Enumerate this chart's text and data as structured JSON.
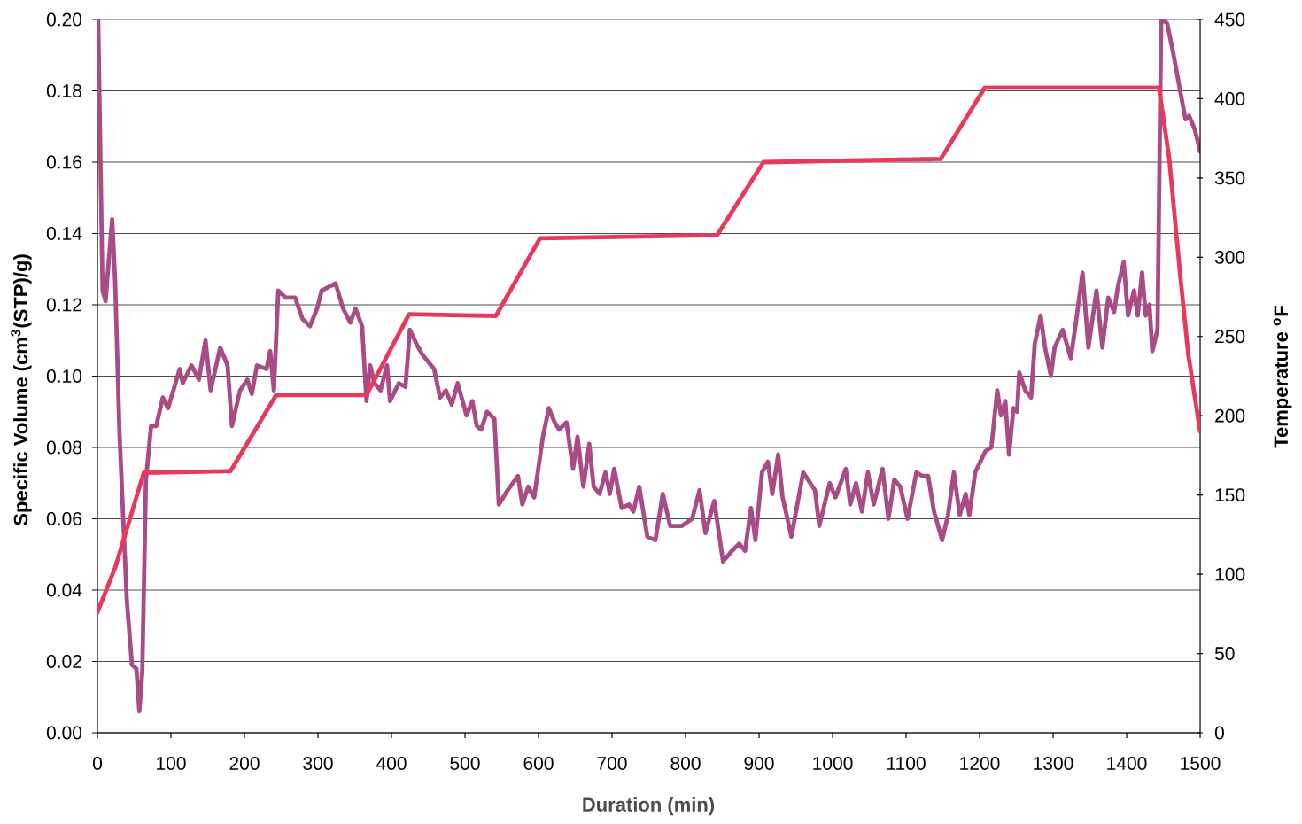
{
  "chart_data": {
    "type": "line",
    "xlabel": "Duration (min)",
    "ylabel": "Specific Volume (cm$^{3}$(STP)/g)",
    "y2label": "Temperature $^{o}$F",
    "xlim": [
      0,
      1500
    ],
    "xticks": [
      0,
      100,
      200,
      300,
      400,
      500,
      600,
      700,
      800,
      900,
      1000,
      1100,
      1200,
      1300,
      1400,
      1500
    ],
    "ylim": [
      0,
      0.2
    ],
    "yticks": [
      {
        "value": 0,
        "label": "0.00"
      },
      0.02,
      0.04,
      0.06,
      0.08,
      {
        "value": 0.1,
        "label": "0.10"
      },
      0.12,
      0.14,
      0.16,
      0.18,
      {
        "value": 0.2,
        "label": "0.20"
      }
    ],
    "y2lim": [
      0,
      450
    ],
    "y2ticks": [
      0,
      50,
      100,
      150,
      200,
      250,
      300,
      350,
      400,
      450
    ],
    "grid": "y",
    "series": [
      {
        "color": "#a94c85",
        "x": [
          1,
          7,
          11,
          20,
          24,
          30,
          40,
          47,
          53,
          57,
          61,
          66,
          73,
          80,
          89,
          96,
          112,
          116,
          128,
          138,
          147,
          154,
          167,
          177,
          183,
          194,
          204,
          210,
          217,
          230,
          235,
          240,
          246,
          256,
          269,
          279,
          289,
          299,
          305,
          324,
          334,
          344,
          351,
          360,
          366,
          371,
          377,
          385,
          394,
          398,
          410,
          419,
          425,
          434,
          442,
          458,
          466,
          474,
          482,
          490,
          502,
          510,
          516,
          522,
          530,
          540,
          546,
          558,
          572,
          578,
          586,
          594,
          606,
          614,
          622,
          628,
          638,
          647,
          653,
          661,
          669,
          675,
          683,
          691,
          697,
          703,
          713,
          723,
          729,
          737,
          748,
          759,
          769,
          779,
          795,
          809,
          819,
          827,
          839,
          851,
          863,
          873,
          881,
          889,
          895,
          904,
          912,
          918,
          926,
          932,
          944,
          960,
          976,
          982,
          996,
          1004,
          1018,
          1024,
          1032,
          1040,
          1048,
          1056,
          1068,
          1076,
          1084,
          1092,
          1102,
          1114,
          1122,
          1130,
          1138,
          1149,
          1157,
          1165,
          1173,
          1181,
          1186,
          1194,
          1208,
          1216,
          1224,
          1229,
          1235,
          1240,
          1246,
          1251,
          1254,
          1262,
          1270,
          1275,
          1283,
          1289,
          1297,
          1302,
          1313,
          1324,
          1331,
          1340,
          1348,
          1359,
          1367,
          1375,
          1383,
          1388,
          1396,
          1402,
          1410,
          1415,
          1421,
          1426,
          1431,
          1435,
          1442,
          1447,
          1455,
          1463,
          1471,
          1480,
          1485,
          1493,
          1500
        ],
        "values": [
          0.2,
          0.124,
          0.121,
          0.144,
          0.127,
          0.084,
          0.037,
          0.019,
          0.018,
          0.006,
          0.017,
          0.071,
          0.086,
          0.086,
          0.094,
          0.091,
          0.102,
          0.098,
          0.103,
          0.099,
          0.11,
          0.096,
          0.108,
          0.103,
          0.086,
          0.096,
          0.099,
          0.095,
          0.103,
          0.102,
          0.107,
          0.096,
          0.124,
          0.122,
          0.122,
          0.116,
          0.114,
          0.119,
          0.124,
          0.126,
          0.119,
          0.115,
          0.119,
          0.114,
          0.093,
          0.103,
          0.098,
          0.096,
          0.103,
          0.093,
          0.098,
          0.097,
          0.113,
          0.109,
          0.106,
          0.102,
          0.094,
          0.096,
          0.092,
          0.098,
          0.089,
          0.093,
          0.086,
          0.085,
          0.09,
          0.088,
          0.064,
          0.068,
          0.072,
          0.064,
          0.069,
          0.066,
          0.083,
          0.091,
          0.087,
          0.085,
          0.087,
          0.074,
          0.083,
          0.069,
          0.081,
          0.069,
          0.067,
          0.073,
          0.067,
          0.074,
          0.063,
          0.064,
          0.062,
          0.069,
          0.055,
          0.054,
          0.067,
          0.058,
          0.058,
          0.06,
          0.068,
          0.056,
          0.065,
          0.048,
          0.051,
          0.053,
          0.051,
          0.063,
          0.054,
          0.073,
          0.076,
          0.067,
          0.078,
          0.066,
          0.055,
          0.073,
          0.068,
          0.058,
          0.07,
          0.066,
          0.074,
          0.064,
          0.07,
          0.062,
          0.073,
          0.064,
          0.074,
          0.06,
          0.071,
          0.069,
          0.06,
          0.073,
          0.072,
          0.072,
          0.062,
          0.054,
          0.061,
          0.073,
          0.061,
          0.067,
          0.061,
          0.073,
          0.079,
          0.08,
          0.096,
          0.089,
          0.093,
          0.078,
          0.091,
          0.09,
          0.101,
          0.096,
          0.094,
          0.109,
          0.117,
          0.108,
          0.1,
          0.108,
          0.113,
          0.105,
          0.115,
          0.129,
          0.108,
          0.124,
          0.108,
          0.122,
          0.118,
          0.125,
          0.132,
          0.117,
          0.124,
          0.117,
          0.129,
          0.117,
          0.12,
          0.107,
          0.113,
          0.2,
          0.199,
          0.191,
          0.182,
          0.172,
          0.173,
          0.169,
          0.163
        ]
      },
      {
        "color": "#e8395c",
        "axis": "y2",
        "x": [
          0,
          24,
          63,
          181,
          243,
          366,
          424,
          542,
          602,
          843,
          906,
          1147,
          1207,
          1444,
          1458,
          1473,
          1484,
          1500
        ],
        "values": [
          76,
          104,
          164,
          165,
          213,
          213,
          264,
          263,
          312,
          314,
          360,
          362,
          407,
          407,
          362,
          288,
          238,
          190
        ]
      }
    ]
  }
}
